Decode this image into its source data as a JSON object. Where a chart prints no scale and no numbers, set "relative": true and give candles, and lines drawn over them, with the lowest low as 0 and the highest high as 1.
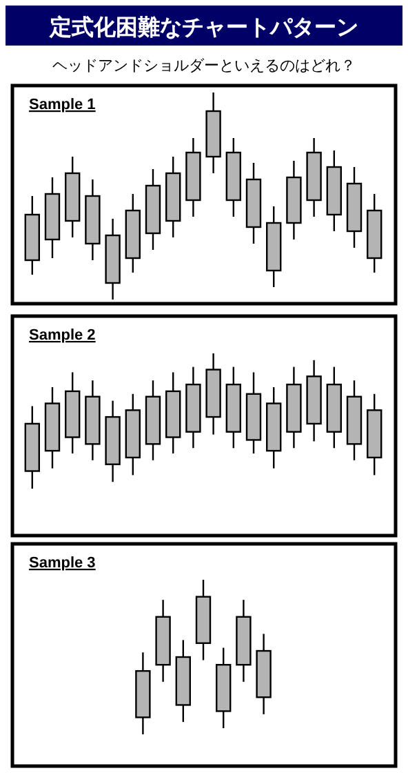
{
  "chart_data": [
    {
      "type": "other",
      "title": "定式化困難なチャートパターン",
      "subtitle": "ヘッドアンドショルダーといえるのはどれ？"
    },
    {
      "type": "candlestick",
      "title": "Sample 1",
      "relative": true,
      "color": "#b4b4b4",
      "categories": [
        null,
        null,
        null,
        null,
        null,
        null,
        null,
        null,
        null,
        null,
        null,
        null,
        null,
        null,
        null,
        null,
        null,
        null
      ],
      "ohlc": [
        [
          0.19,
          0.5,
          0.12,
          0.41
        ],
        [
          0.29,
          0.59,
          0.2,
          0.51
        ],
        [
          0.38,
          0.69,
          0.3,
          0.61
        ],
        [
          0.27,
          0.58,
          0.19,
          0.5
        ],
        [
          0.08,
          0.39,
          0,
          0.31
        ],
        [
          0.2,
          0.51,
          0.13,
          0.43
        ],
        [
          0.32,
          0.63,
          0.24,
          0.55
        ],
        [
          0.38,
          0.69,
          0.3,
          0.61
        ],
        [
          0.48,
          0.78,
          0.4,
          0.71
        ],
        [
          0.69,
          1,
          0.61,
          0.91
        ],
        [
          0.48,
          0.78,
          0.4,
          0.71
        ],
        [
          0.35,
          0.66,
          0.27,
          0.58
        ],
        [
          0.14,
          0.45,
          0.06,
          0.37
        ],
        [
          0.37,
          0.67,
          0.29,
          0.59
        ],
        [
          0.48,
          0.78,
          0.4,
          0.71
        ],
        [
          0.41,
          0.72,
          0.33,
          0.64
        ],
        [
          0.33,
          0.64,
          0.25,
          0.56
        ],
        [
          0.2,
          0.51,
          0.13,
          0.43
        ]
      ]
    },
    {
      "type": "candlestick",
      "title": "Sample 2",
      "relative": true,
      "color": "#b4b4b4",
      "categories": [
        null,
        null,
        null,
        null,
        null,
        null,
        null,
        null,
        null,
        null,
        null,
        null,
        null,
        null,
        null,
        null,
        null,
        null
      ],
      "ohlc": [
        [
          0.13,
          0.61,
          0,
          0.48
        ],
        [
          0.28,
          0.75,
          0.15,
          0.63
        ],
        [
          0.38,
          0.86,
          0.26,
          0.72
        ],
        [
          0.33,
          0.8,
          0.21,
          0.68
        ],
        [
          0.18,
          0.65,
          0.05,
          0.53
        ],
        [
          0.23,
          0.7,
          0.1,
          0.58
        ],
        [
          0.33,
          0.8,
          0.21,
          0.68
        ],
        [
          0.38,
          0.86,
          0.26,
          0.72
        ],
        [
          0.42,
          0.9,
          0.3,
          0.77
        ],
        [
          0.53,
          1,
          0.4,
          0.88
        ],
        [
          0.42,
          0.9,
          0.3,
          0.77
        ],
        [
          0.36,
          0.86,
          0.26,
          0.7
        ],
        [
          0.28,
          0.75,
          0.15,
          0.63
        ],
        [
          0.42,
          0.9,
          0.3,
          0.77
        ],
        [
          0.48,
          0.95,
          0.35,
          0.83
        ],
        [
          0.42,
          0.9,
          0.3,
          0.77
        ],
        [
          0.33,
          0.8,
          0.21,
          0.68
        ],
        [
          0.23,
          0.7,
          0.1,
          0.58
        ]
      ]
    },
    {
      "type": "candlestick",
      "title": "Sample 3",
      "relative": true,
      "color": "#b4b4b4",
      "categories": [
        null,
        null,
        null,
        null,
        null,
        null,
        null
      ],
      "ohlc": [
        [
          0.11,
          0.53,
          0,
          0.41
        ],
        [
          0.45,
          0.87,
          0.34,
          0.76
        ],
        [
          0.19,
          0.61,
          0.08,
          0.5
        ],
        [
          0.59,
          1,
          0.48,
          0.89
        ],
        [
          0.15,
          0.56,
          0.04,
          0.45
        ],
        [
          0.45,
          0.87,
          0.34,
          0.76
        ],
        [
          0.24,
          0.65,
          0.13,
          0.54
        ]
      ]
    }
  ]
}
